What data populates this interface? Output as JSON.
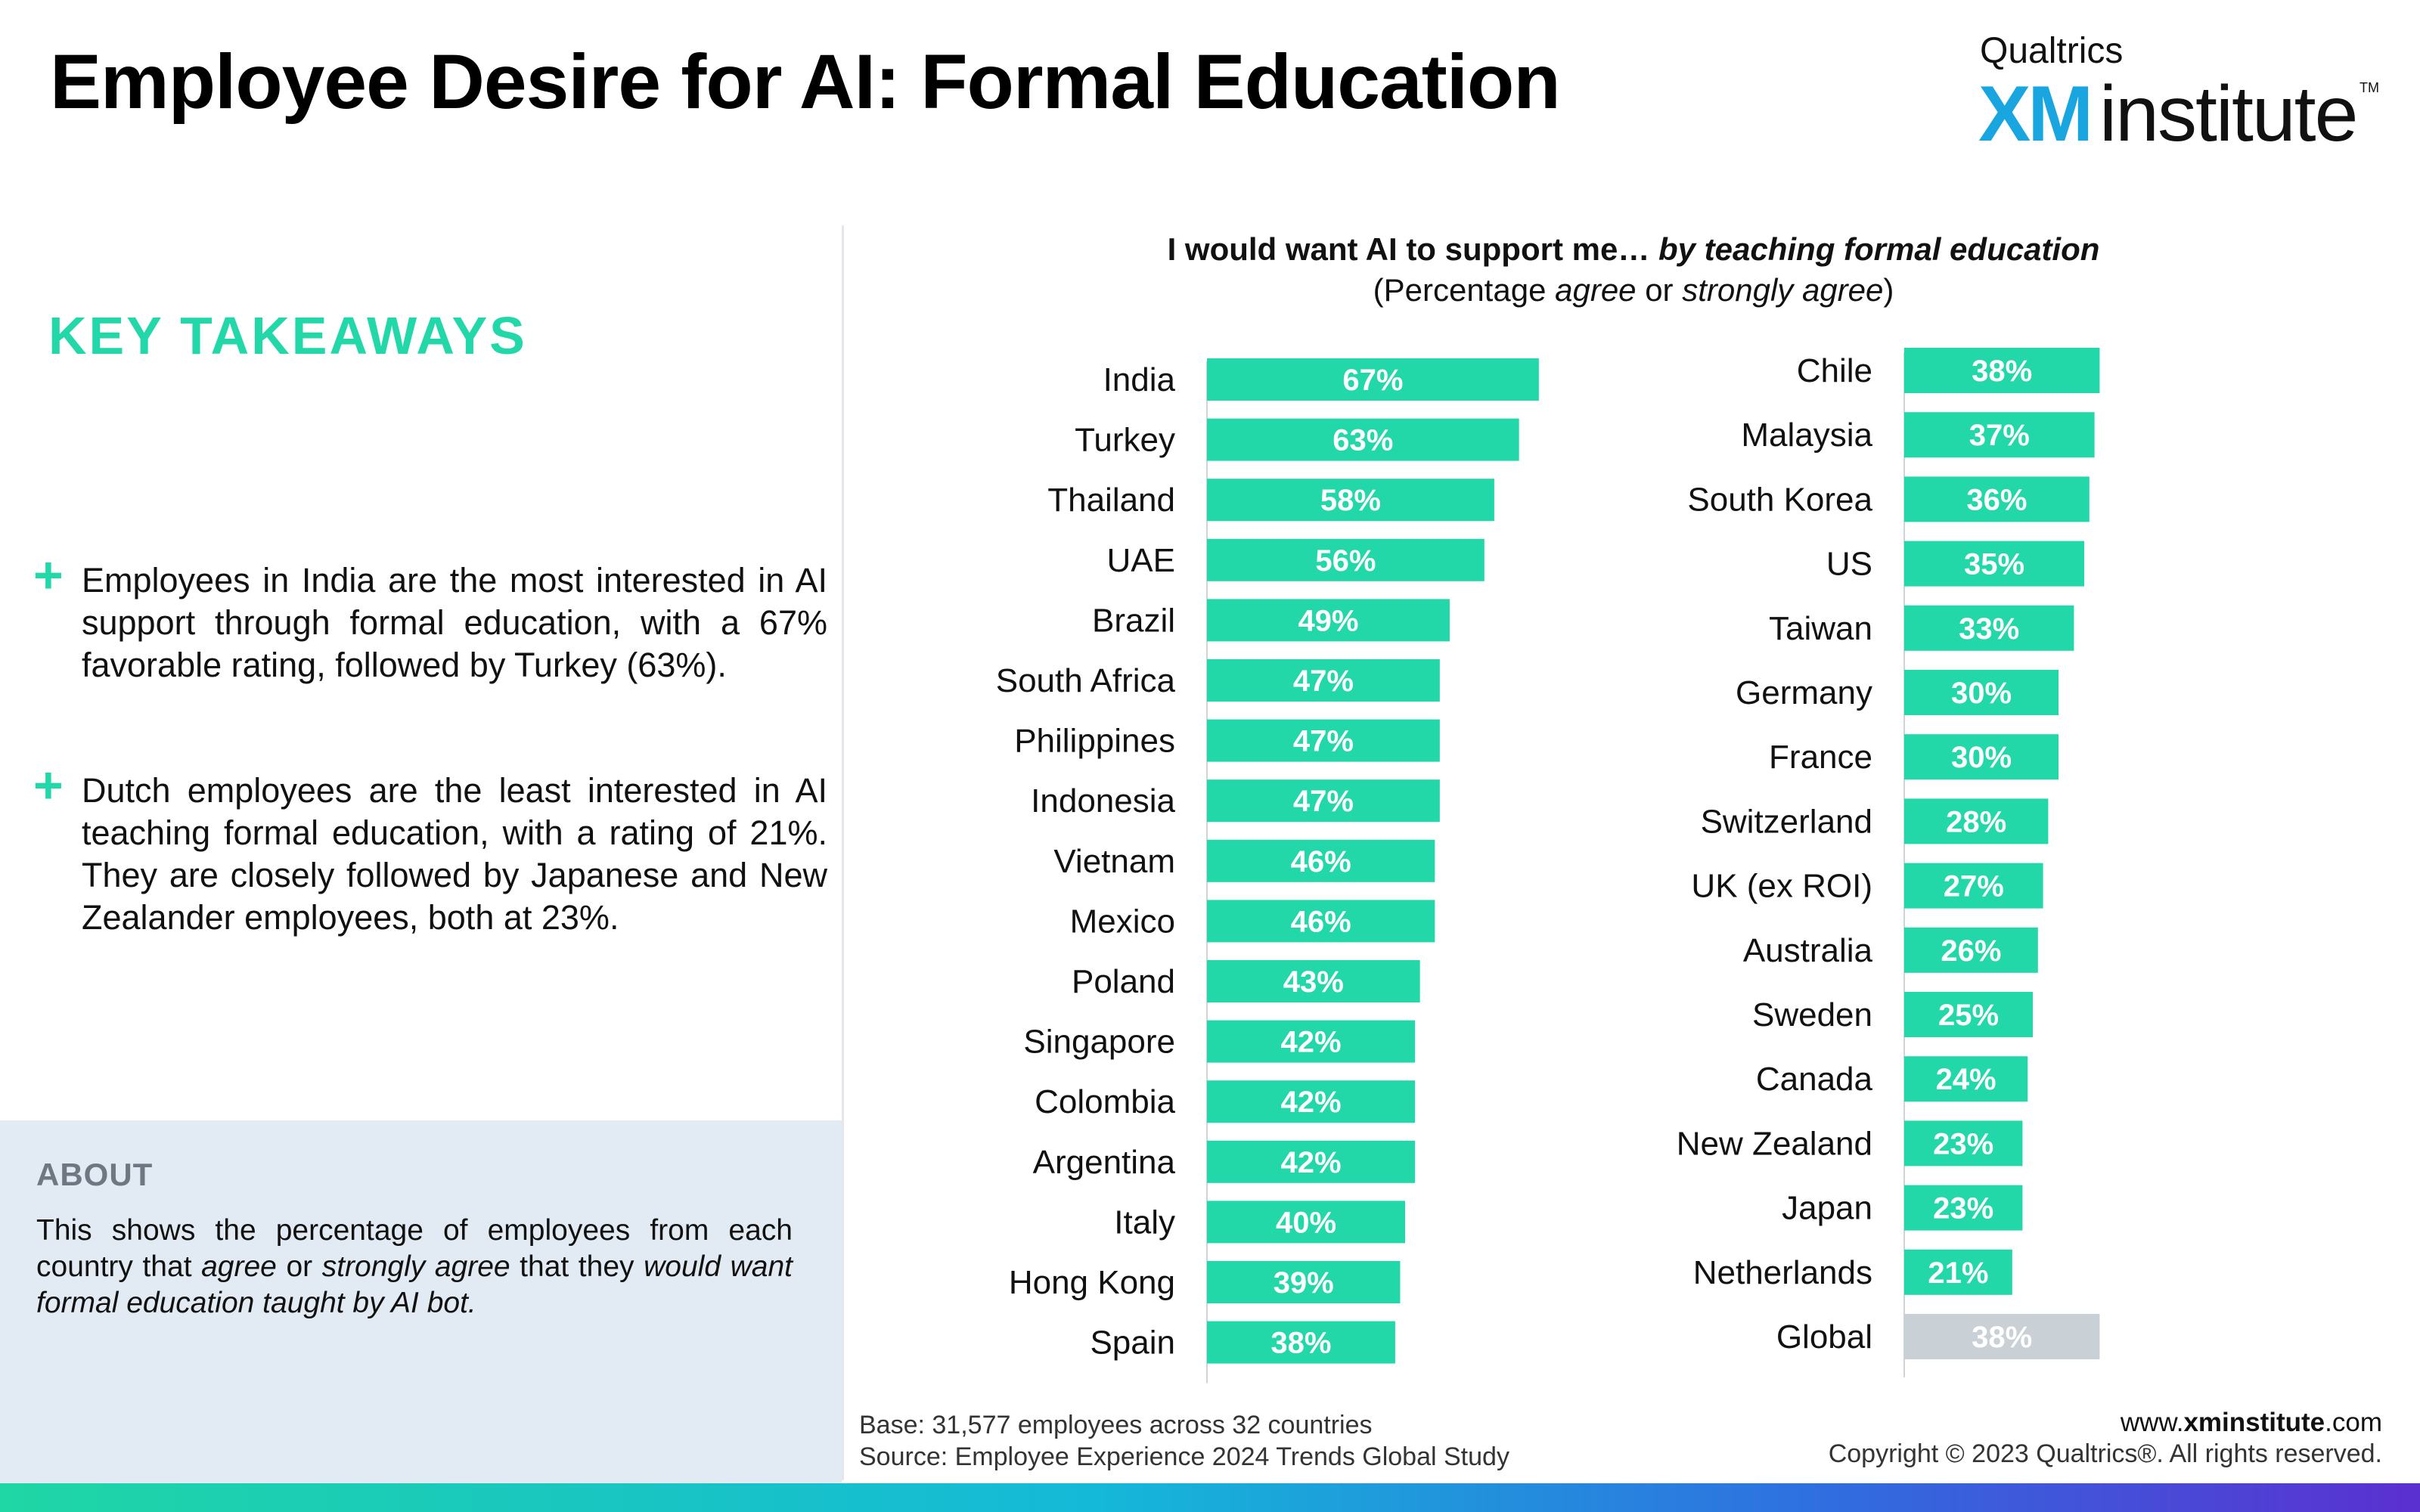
{
  "header": {
    "title": "Employee Desire for AI: Formal Education",
    "logo": {
      "brand": "Qualtrics",
      "xm": "XM",
      "institute": "institute",
      "tm": "TM"
    }
  },
  "takeaways": {
    "heading": "KEY TAKEAWAYS",
    "bullet_symbol": "+",
    "items": [
      "Employees in India are the most interested in AI support through formal education, with a 67% favorable rating, followed by Turkey (63%).",
      "Dutch employees are the least interested in AI teaching formal education, with a rating of 21%. They are closely followed by Japanese and New Zealander employees, both at 23%."
    ]
  },
  "about": {
    "heading": "ABOUT",
    "text_parts": [
      "This shows the percentage of employees from each country that ",
      "agree",
      " or ",
      "strongly agree",
      " that they ",
      "would want formal education taught by AI bot."
    ]
  },
  "chart_data": {
    "type": "bar",
    "orientation": "horizontal",
    "title_parts": [
      "I would want AI to support me… ",
      "by teaching formal education"
    ],
    "subtitle_parts": [
      "(Percentage ",
      "agree",
      " or ",
      "strongly agree",
      ")"
    ],
    "unit": "%",
    "bar_color": "#23d8a8",
    "highlight_color": "#c9d0d6",
    "series": [
      {
        "categories": [
          "India",
          "Turkey",
          "Thailand",
          "UAE",
          "Brazil",
          "South Africa",
          "Philippines",
          "Indonesia",
          "Vietnam",
          "Mexico",
          "Poland",
          "Singapore",
          "Colombia",
          "Argentina",
          "Italy",
          "Hong Kong",
          "Spain"
        ],
        "values": [
          67,
          63,
          58,
          56,
          49,
          47,
          47,
          47,
          46,
          46,
          43,
          42,
          42,
          42,
          40,
          39,
          38
        ]
      },
      {
        "categories": [
          "Chile",
          "Malaysia",
          "South Korea",
          "US",
          "Taiwan",
          "Germany",
          "France",
          "Switzerland",
          "UK (ex ROI)",
          "Australia",
          "Sweden",
          "Canada",
          "New Zealand",
          "Japan",
          "Netherlands",
          "Global"
        ],
        "values": [
          38,
          37,
          36,
          35,
          33,
          30,
          30,
          28,
          27,
          26,
          25,
          24,
          23,
          23,
          21,
          38
        ],
        "highlight_category": "Global"
      }
    ]
  },
  "footer": {
    "base": "Base: 31,577 employees across 32 countries",
    "source": "Source: Employee Experience 2024 Trends Global Study",
    "website_prefix": "www.",
    "website_bold": "xminstitute",
    "website_suffix": ".com",
    "copyright": "Copyright © 2023 Qualtrics®. All rights reserved."
  }
}
